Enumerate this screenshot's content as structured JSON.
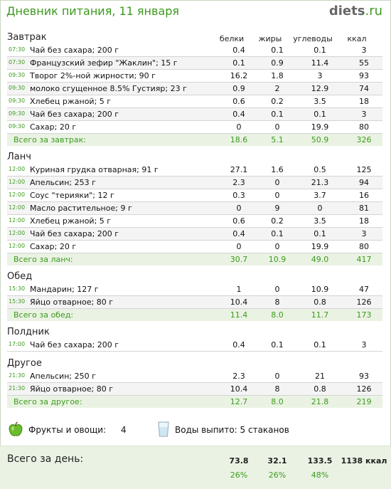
{
  "header": {
    "title": "Дневник питания, 11 января",
    "logo_main": "diets",
    "logo_tld": ".ru"
  },
  "columns": {
    "protein": "белки",
    "fat": "жиры",
    "carbs": "углеводы",
    "kcal": "ккал"
  },
  "meals": [
    {
      "title": "Завтрак",
      "total_label": "Всего за завтрак:",
      "total": [
        "18.6",
        "5.1",
        "50.9",
        "326"
      ],
      "items": [
        {
          "time": "07:30",
          "name": "Чай без сахара; 200 г",
          "protein": "0.4",
          "fat": "0.1",
          "carbs": "0.1",
          "kcal": "3"
        },
        {
          "time": "07:30",
          "name": "Французский зефир \"Жаклин\"; 15 г",
          "protein": "0.1",
          "fat": "0.9",
          "carbs": "11.4",
          "kcal": "55"
        },
        {
          "time": "09:30",
          "name": "Творог 2%-ной жирности; 90 г",
          "protein": "16.2",
          "fat": "1.8",
          "carbs": "3",
          "kcal": "93"
        },
        {
          "time": "09:30",
          "name": "молоко сгущенное 8.5% Густияр; 23 г",
          "protein": "0.9",
          "fat": "2",
          "carbs": "12.9",
          "kcal": "74"
        },
        {
          "time": "09:30",
          "name": "Хлебец ржаной; 5 г",
          "protein": "0.6",
          "fat": "0.2",
          "carbs": "3.5",
          "kcal": "18"
        },
        {
          "time": "09:30",
          "name": "Чай без сахара; 200 г",
          "protein": "0.4",
          "fat": "0.1",
          "carbs": "0.1",
          "kcal": "3"
        },
        {
          "time": "09:30",
          "name": "Сахар; 20 г",
          "protein": "0",
          "fat": "0",
          "carbs": "19.9",
          "kcal": "80"
        }
      ]
    },
    {
      "title": "Ланч",
      "total_label": "Всего за ланч:",
      "total": [
        "30.7",
        "10.9",
        "49.0",
        "417"
      ],
      "items": [
        {
          "time": "12:00",
          "name": "Куриная грудка отварная; 91 г",
          "protein": "27.1",
          "fat": "1.6",
          "carbs": "0.5",
          "kcal": "125"
        },
        {
          "time": "12:00",
          "name": "Апельсин; 253 г",
          "protein": "2.3",
          "fat": "0",
          "carbs": "21.3",
          "kcal": "94"
        },
        {
          "time": "12:00",
          "name": "Соус \"терияки\"; 12 г",
          "protein": "0.3",
          "fat": "0",
          "carbs": "3.7",
          "kcal": "16"
        },
        {
          "time": "12:00",
          "name": "Масло растительное; 9 г",
          "protein": "0",
          "fat": "9",
          "carbs": "0",
          "kcal": "81"
        },
        {
          "time": "12:00",
          "name": "Хлебец ржаной; 5 г",
          "protein": "0.6",
          "fat": "0.2",
          "carbs": "3.5",
          "kcal": "18"
        },
        {
          "time": "12:00",
          "name": "Чай без сахара; 200 г",
          "protein": "0.4",
          "fat": "0.1",
          "carbs": "0.1",
          "kcal": "3"
        },
        {
          "time": "12:00",
          "name": "Сахар; 20 г",
          "protein": "0",
          "fat": "0",
          "carbs": "19.9",
          "kcal": "80"
        }
      ]
    },
    {
      "title": "Обед",
      "total_label": "Всего за обед:",
      "total": [
        "11.4",
        "8.0",
        "11.7",
        "173"
      ],
      "items": [
        {
          "time": "15:30",
          "name": "Мандарин; 127 г",
          "protein": "1",
          "fat": "0",
          "carbs": "10.9",
          "kcal": "47"
        },
        {
          "time": "15:30",
          "name": "Яйцо отварное; 80 г",
          "protein": "10.4",
          "fat": "8",
          "carbs": "0.8",
          "kcal": "126"
        }
      ]
    },
    {
      "title": "Полдник",
      "total_label": "",
      "total": null,
      "items": [
        {
          "time": "17:00",
          "name": "Чай без сахара; 200 г",
          "protein": "0.4",
          "fat": "0.1",
          "carbs": "0.1",
          "kcal": "3"
        }
      ]
    },
    {
      "title": "Другое",
      "total_label": "Всего за другое:",
      "total": [
        "12.7",
        "8.0",
        "21.8",
        "219"
      ],
      "items": [
        {
          "time": "21:30",
          "name": "Апельсин; 250 г",
          "protein": "2.3",
          "fat": "0",
          "carbs": "21",
          "kcal": "93"
        },
        {
          "time": "21:30",
          "name": "Яйцо отварное; 80 г",
          "protein": "10.4",
          "fat": "8",
          "carbs": "0.8",
          "kcal": "126"
        }
      ]
    }
  ],
  "extras": {
    "fruit_label": "Фрукты и овощи:",
    "fruit_value": "4",
    "water_text": "Воды выпито: 5 стаканов",
    "fruit_icon": "green-apple-icon",
    "water_icon": "water-glass-icon"
  },
  "day_total": {
    "label": "Всего за день:",
    "protein": "73.8",
    "fat": "32.1",
    "carbs": "133.5",
    "kcal": "1138 ккал",
    "protein_pct": "26%",
    "fat_pct": "26%",
    "carbs_pct": "48%"
  },
  "colors": {
    "accent": "#3c9a1e",
    "total_bg": "#eaf3e3"
  }
}
